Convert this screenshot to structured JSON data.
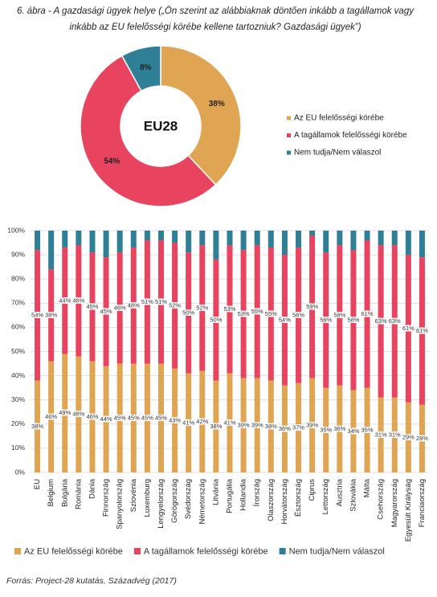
{
  "chart_data": [
    {
      "type": "pie",
      "title": "6. ábra - A gazdasági ügyek helye („Ön szerint az alábbiaknak döntően inkább a tagállamok vagy inkább az EU felelősségi körébe kellene tartozniuk? Gazdasági ügyek”)",
      "center_label": "EU28",
      "categories": [
        "Az EU felelősségi körébe",
        "A tagállamok felelősségi körébe",
        "Nem tudja/Nem válaszol"
      ],
      "values": [
        38,
        54,
        8
      ],
      "value_labels": [
        "38%",
        "54%",
        "8%"
      ],
      "colors": [
        "#dfa552",
        "#e8435f",
        "#2f7f96"
      ],
      "legend": "right"
    },
    {
      "type": "bar",
      "stacked": true,
      "categories": [
        "EU",
        "Belgium",
        "Bulgária",
        "Románia",
        "Dánia",
        "Finnország",
        "Spanyolország",
        "Szlovénia",
        "Luxemburg",
        "Lengyelország",
        "Görögország",
        "Svédország",
        "Németország",
        "Litvánia",
        "Portugália",
        "Hollandia",
        "Írország",
        "Olaszország",
        "Horvátország",
        "Észtország",
        "Ciprus",
        "Lettország",
        "Ausztria",
        "Szlovákia",
        "Málta",
        "Csehország",
        "Magyarország",
        "Egyesült Királyság",
        "Franciaország"
      ],
      "series": [
        {
          "name": "Az EU felelősségi körébe",
          "color": "#dfa552",
          "values": [
            38,
            46,
            49,
            48,
            46,
            44,
            45,
            45,
            45,
            45,
            43,
            41,
            42,
            38,
            41,
            39,
            39,
            38,
            36,
            37,
            39,
            35,
            36,
            34,
            35,
            31,
            31,
            29,
            28
          ],
          "value_labels": [
            "38%",
            "46%",
            "49%",
            "48%",
            "46%",
            "44%",
            "45%",
            "45%",
            "45%",
            "45%",
            "43%",
            "41%",
            "42%",
            "38%",
            "41%",
            "39%",
            "39%",
            "38%",
            "36%",
            "37%",
            "39%",
            "35%",
            "36%",
            "34%",
            "35%",
            "31%",
            "31%",
            "29%",
            "28%"
          ]
        },
        {
          "name": "A tagállamok felelősségi körébe",
          "color": "#e8435f",
          "values": [
            54,
            38,
            44,
            46,
            45,
            45,
            46,
            48,
            51,
            51,
            52,
            50,
            52,
            50,
            53,
            53,
            55,
            55,
            54,
            56,
            59,
            56,
            58,
            58,
            61,
            63,
            63,
            61,
            61
          ],
          "value_labels": [
            "54%",
            "38%",
            "44%",
            "46%",
            "45%",
            "45%",
            "46%",
            "48%",
            "51%",
            "51%",
            "52%",
            "50%",
            "52%",
            "50%",
            "53%",
            "53%",
            "55%",
            "55%",
            "54%",
            "56%",
            "59%",
            "56%",
            "58%",
            "58%",
            "61%",
            "63%",
            "63%",
            "61%",
            "61%"
          ]
        },
        {
          "name": "Nem tudja/Nem válaszol",
          "color": "#2f7f96",
          "values": [
            8,
            16,
            7,
            6,
            9,
            11,
            9,
            7,
            4,
            4,
            5,
            9,
            6,
            12,
            6,
            8,
            6,
            7,
            10,
            7,
            2,
            9,
            6,
            8,
            4,
            6,
            6,
            10,
            11
          ]
        }
      ],
      "ylim": [
        0,
        100
      ],
      "yticks": [
        {
          "value": 0,
          "label": "0%"
        },
        {
          "value": 10,
          "label": "10%"
        },
        {
          "value": 20,
          "label": "20%"
        },
        {
          "value": 30,
          "label": "30%"
        },
        {
          "value": 40,
          "label": "40%"
        },
        {
          "value": 50,
          "label": "50%"
        },
        {
          "value": 60,
          "label": "60%"
        },
        {
          "value": 70,
          "label": "70%"
        },
        {
          "value": 80,
          "label": "80%"
        },
        {
          "value": 90,
          "label": "90%"
        },
        {
          "value": 100,
          "label": "100%"
        }
      ],
      "grid": true,
      "legend": "bottom"
    }
  ],
  "source": "Forrás: Project-28 kutatás, Századvég (2017)"
}
